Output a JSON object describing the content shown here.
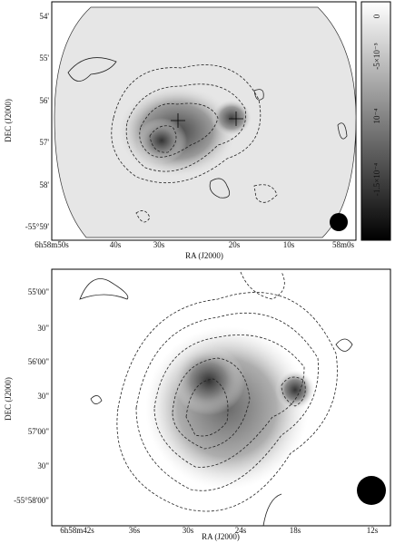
{
  "panels": [
    {
      "x_axis_label": "RA (J2000)",
      "y_axis_label": "DEC (J2000)",
      "x_tick_labels": [
        "6h58m50s",
        "40s",
        "30s",
        "20s",
        "10s",
        "58m0s"
      ],
      "y_tick_labels": [
        "54'",
        "55'",
        "56'",
        "57'",
        "58'",
        "-55°59'"
      ],
      "colorbar_tick_labels": [
        "0",
        "-5×10⁻⁵",
        "10⁻⁴",
        "-1.5×10⁻⁴"
      ]
    },
    {
      "x_axis_label": "RA (J2000)",
      "y_axis_label": "DEC (J2000)",
      "x_tick_labels": [
        "6h58m42s",
        "36s",
        "30s",
        "24s",
        "18s",
        "12s"
      ],
      "y_tick_labels": [
        "55'00\"",
        "30\"",
        "56'00\"",
        "30\"",
        "57'00\"",
        "30\"",
        "-55°58'00\""
      ]
    }
  ]
}
